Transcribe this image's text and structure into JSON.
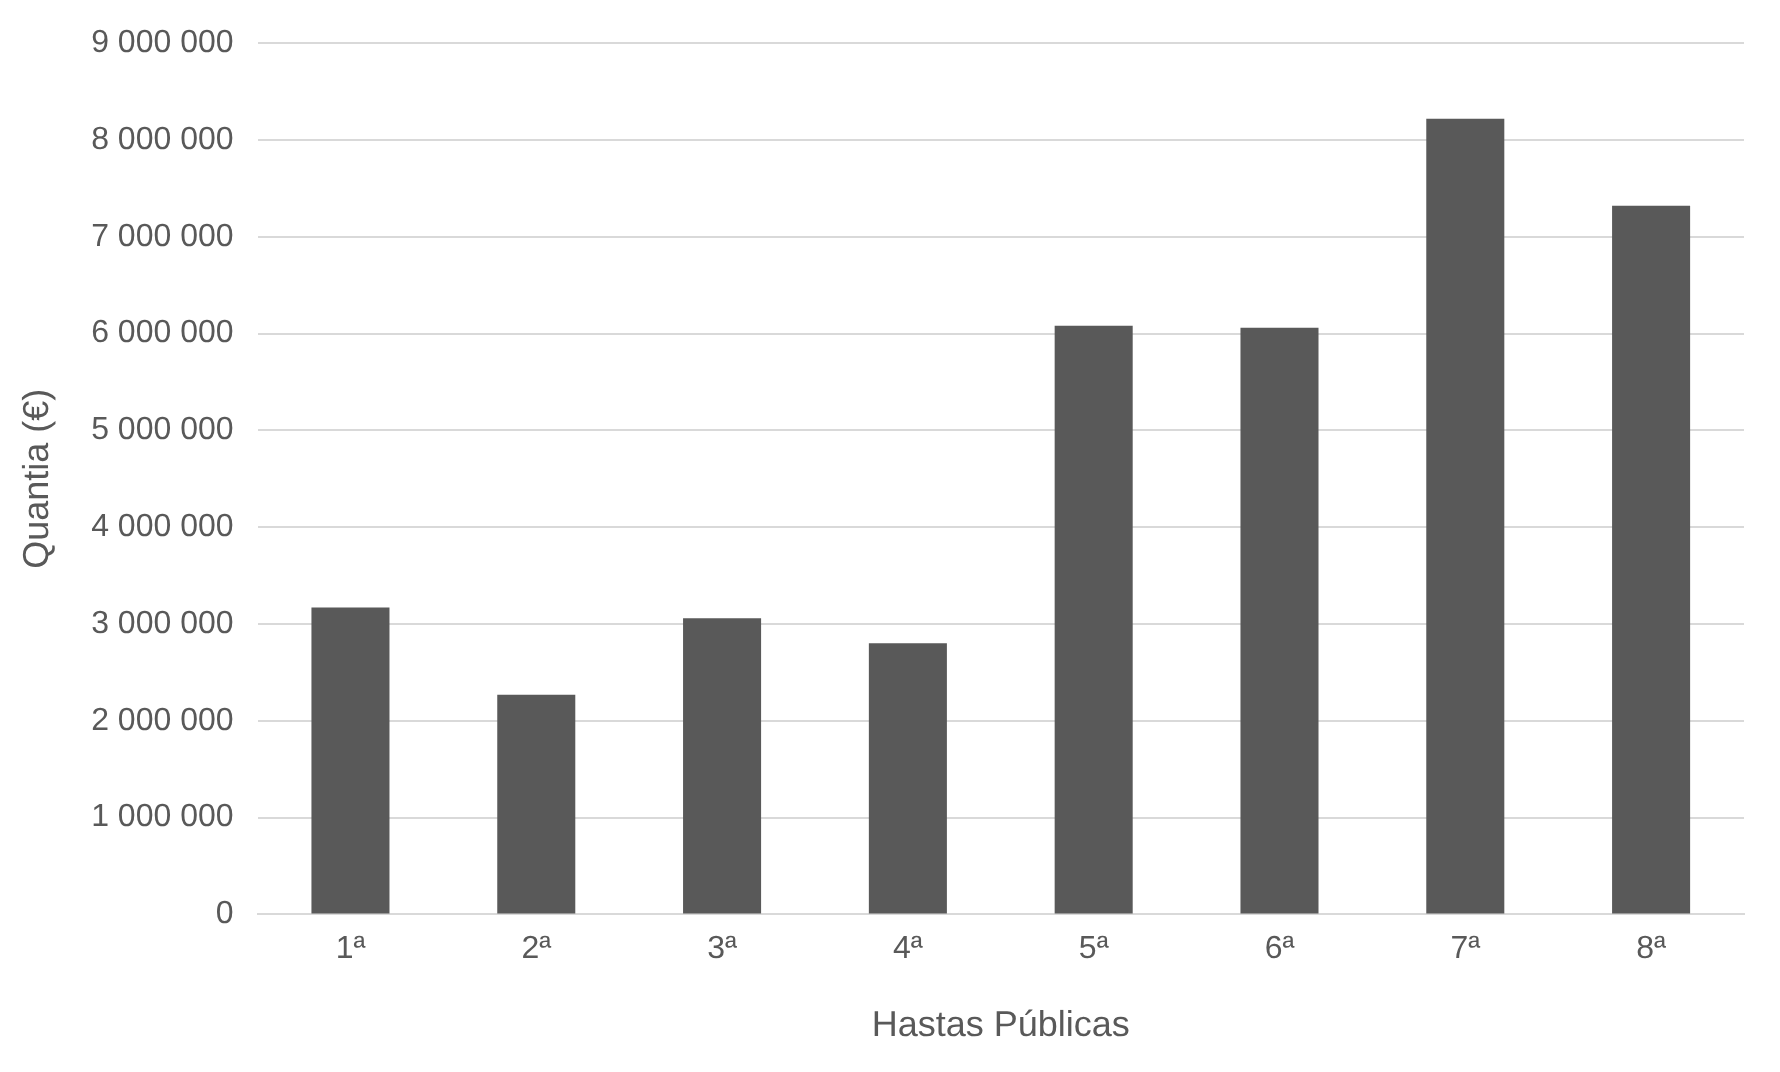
{
  "chart_data": {
    "type": "bar",
    "xlabel": "Hastas Públicas",
    "ylabel": "Quantia (€)",
    "categories": [
      "1ª",
      "2ª",
      "3ª",
      "4ª",
      "5ª",
      "6ª",
      "7ª",
      "8ª"
    ],
    "values": [
      3170000,
      2270000,
      3060000,
      2800000,
      6080000,
      6060000,
      8220000,
      7320000
    ],
    "color": "#595959",
    "ylim": [
      0,
      9000000
    ],
    "yticks": [
      {
        "value": 0,
        "label": "0"
      },
      {
        "value": 1000000,
        "label": "1 000 000"
      },
      {
        "value": 2000000,
        "label": "2 000 000"
      },
      {
        "value": 3000000,
        "label": "3 000 000"
      },
      {
        "value": 4000000,
        "label": "4 000 000"
      },
      {
        "value": 5000000,
        "label": "5 000 000"
      },
      {
        "value": 6000000,
        "label": "6 000 000"
      },
      {
        "value": 7000000,
        "label": "7 000 000"
      },
      {
        "value": 8000000,
        "label": "8 000 000"
      },
      {
        "value": 9000000,
        "label": "9 000 000"
      }
    ],
    "grid": "y",
    "legend": false
  }
}
